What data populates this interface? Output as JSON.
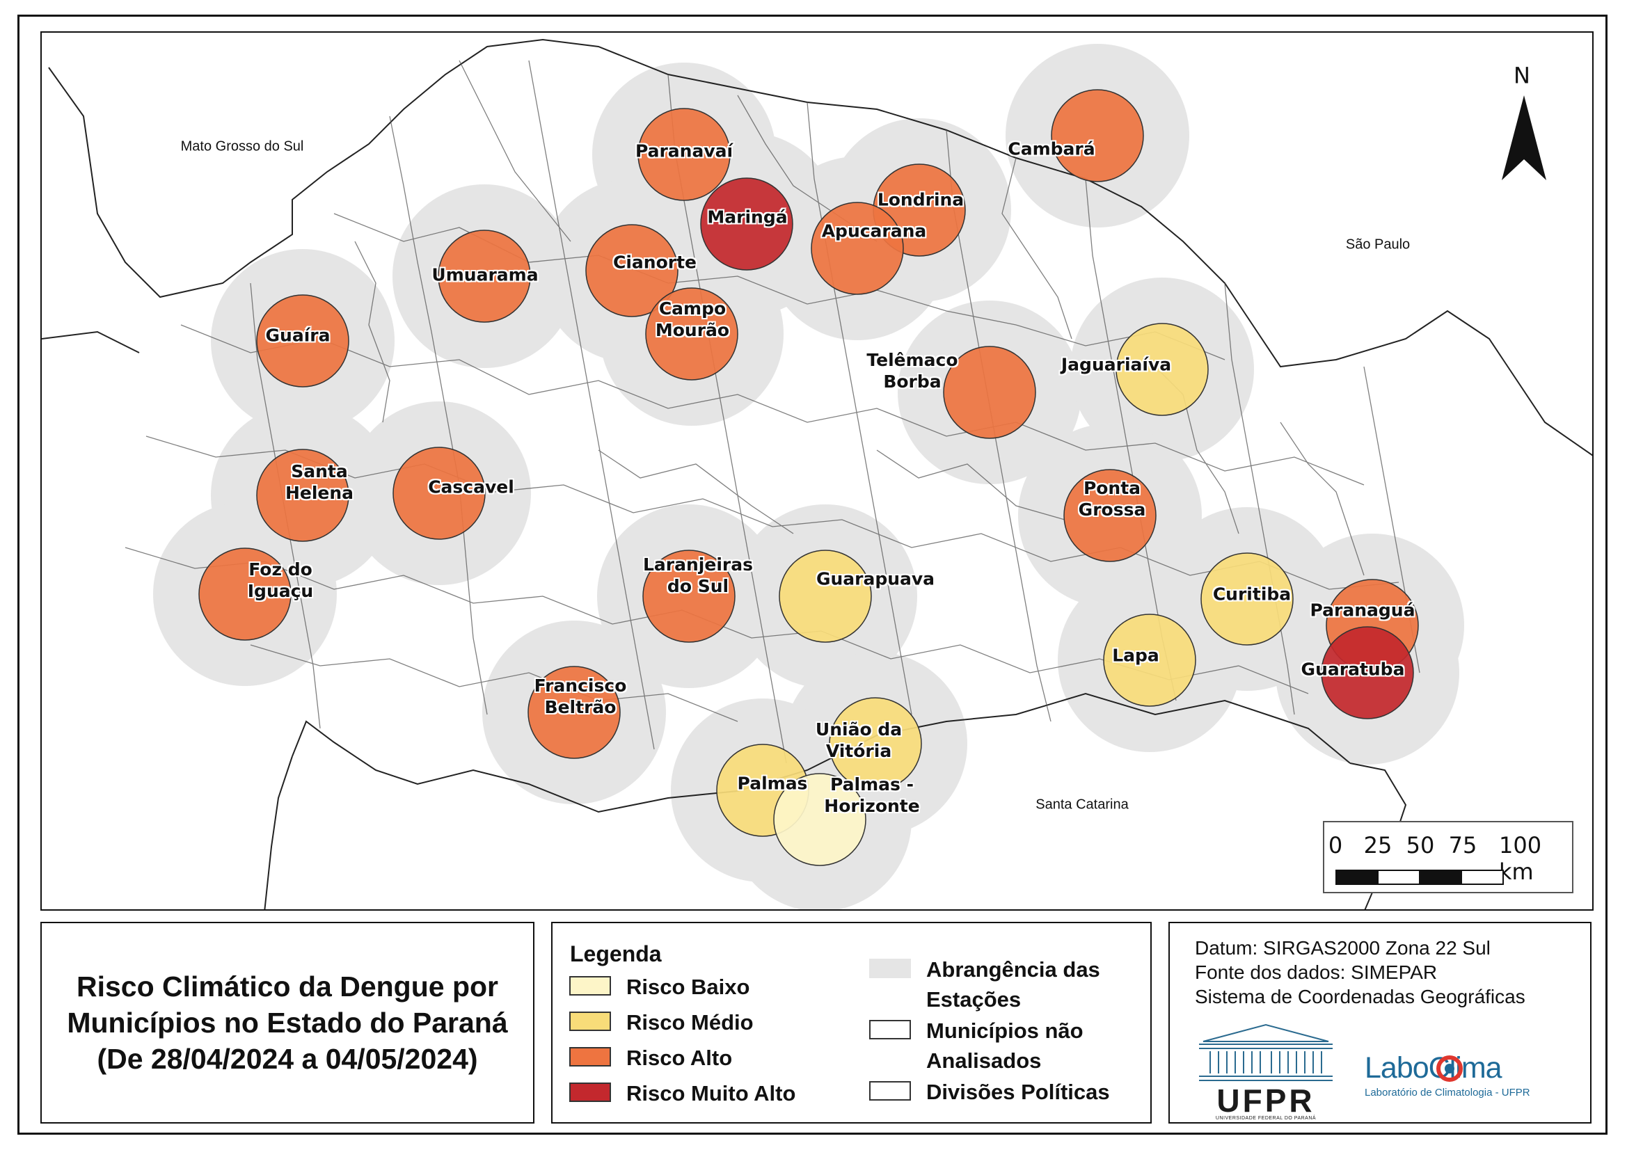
{
  "map": {
    "north_label": "N",
    "regions": {
      "mato_grosso_do_sul": "Mato Grosso do Sul",
      "sao_paulo": "São Paulo",
      "santa_catarina": "Santa Catarina"
    },
    "colors": {
      "risco_baixo": "#fdf5c8",
      "risco_medio": "#f8dc79",
      "risco_alto": "#ee7440",
      "risco_muito_alto": "#c3282d",
      "abrangencia": "#e5e5e5"
    },
    "cities": [
      {
        "name": "Paranavaí",
        "risk": "alto"
      },
      {
        "name": "Maringá",
        "risk": "muito_alto"
      },
      {
        "name": "Londrina",
        "risk": "alto"
      },
      {
        "name": "Apucarana",
        "risk": "alto"
      },
      {
        "name": "Cambará",
        "risk": "alto"
      },
      {
        "name": "Umuarama",
        "risk": "alto"
      },
      {
        "name": "Cianorte",
        "risk": "alto"
      },
      {
        "name": "Campo Mourão",
        "risk": "alto"
      },
      {
        "name": "Guaíra",
        "risk": "alto"
      },
      {
        "name": "Telêmaco Borba",
        "risk": "alto"
      },
      {
        "name": "Jaguariaíva",
        "risk": "medio"
      },
      {
        "name": "Santa Helena",
        "risk": "alto"
      },
      {
        "name": "Cascavel",
        "risk": "alto"
      },
      {
        "name": "Ponta Grossa",
        "risk": "alto"
      },
      {
        "name": "Foz do Iguaçu",
        "risk": "alto"
      },
      {
        "name": "Laranjeiras do Sul",
        "risk": "alto"
      },
      {
        "name": "Guarapuava",
        "risk": "medio"
      },
      {
        "name": "Curitiba",
        "risk": "medio"
      },
      {
        "name": "Paranaguá",
        "risk": "alto"
      },
      {
        "name": "Lapa",
        "risk": "medio"
      },
      {
        "name": "Guaratuba",
        "risk": "muito_alto"
      },
      {
        "name": "Francisco Beltrão",
        "risk": "alto"
      },
      {
        "name": "União da Vitória",
        "risk": "medio"
      },
      {
        "name": "Palmas",
        "risk": "medio"
      },
      {
        "name": "Palmas - Horizonte",
        "risk": "baixo"
      }
    ],
    "scale": {
      "ticks": [
        "0",
        "25",
        "50",
        "75",
        "100 km"
      ]
    }
  },
  "title": {
    "line1": "Risco Climático da Dengue por",
    "line2": "Municípios no Estado do Paraná",
    "line3": "(De 28/04/2024 a 04/05/2024)"
  },
  "legend": {
    "heading": "Legenda",
    "risk_items": [
      {
        "label": "Risco Baixo",
        "color": "#fdf5c8"
      },
      {
        "label": "Risco Médio",
        "color": "#f8dc79"
      },
      {
        "label": "Risco Alto",
        "color": "#ee7440"
      },
      {
        "label": "Risco Muito Alto",
        "color": "#c3282d"
      }
    ],
    "layer_items": [
      {
        "label": "Abrangência das Estações",
        "color": "#e5e5e5"
      },
      {
        "label": "Municípios não Analisados",
        "color": "#ffffff"
      },
      {
        "label": "Divisões Políticas",
        "color": "#ffffff"
      }
    ]
  },
  "info": {
    "datum": "Datum: SIRGAS2000 Zona 22 Sul",
    "source": "Fonte dos dados: SIMEPAR",
    "crs": "Sistema de Coordenadas Geográficas",
    "ufpr_logo_text": "UFPR",
    "ufpr_logo_subtext": "UNIVERSIDADE FEDERAL DO PARANÁ",
    "laboclima_logo_text": "LaboClima",
    "laboclima_logo_subtext": "Laboratório de Climatologia - UFPR"
  }
}
